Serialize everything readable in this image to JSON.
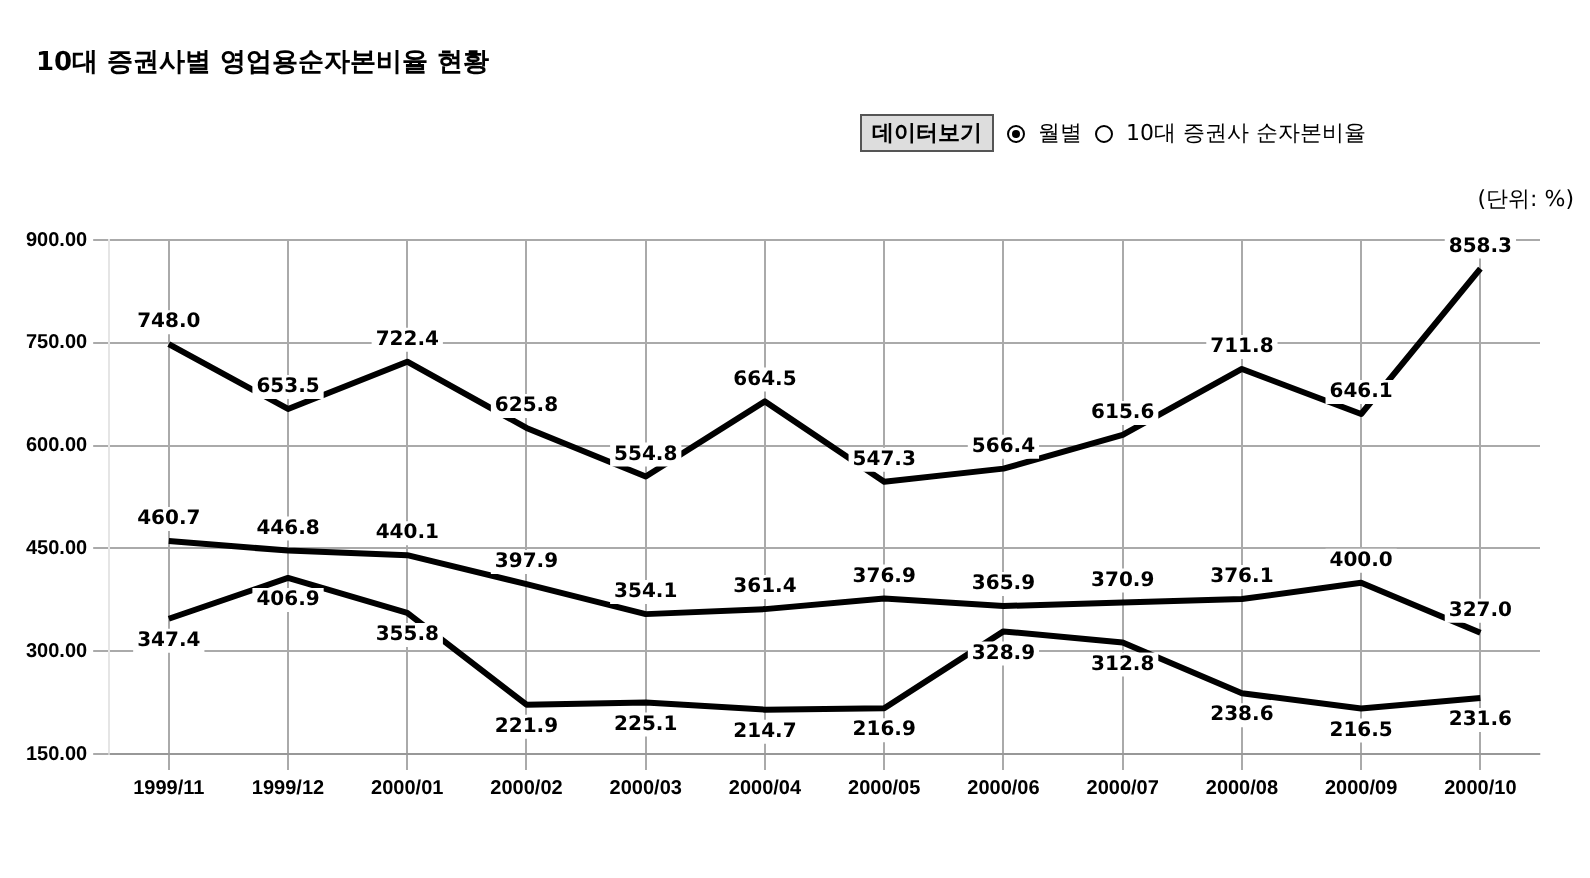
{
  "chart_data": {
    "type": "line",
    "title": "10대 증권사별 영업용순자본비율 현황",
    "annotations": [
      "데이터보기",
      "월별",
      "10대 증권사 순자본비율",
      "(단위: %)"
    ],
    "categories": [
      "1999/11",
      "1999/12",
      "2000/01",
      "2000/02",
      "2000/03",
      "2000/04",
      "2000/05",
      "2000/06",
      "2000/07",
      "2000/08",
      "2000/09",
      "2000/10"
    ],
    "series": [
      {
        "color": "#000000",
        "values": [
          748.0,
          653.5,
          722.4,
          625.8,
          554.8,
          664.5,
          547.3,
          566.4,
          615.6,
          711.8,
          646.1,
          858.3
        ],
        "value_labels": [
          "748.0",
          "653.5",
          "722.4",
          "625.8",
          "554.8",
          "664.5",
          "547.3",
          "566.4",
          "615.6",
          "711.8",
          "646.1",
          "858.3"
        ]
      },
      {
        "color": "#000000",
        "values": [
          460.7,
          446.8,
          440.1,
          397.9,
          354.1,
          361.4,
          376.9,
          365.9,
          370.9,
          376.1,
          400.0,
          327.0
        ],
        "value_labels": [
          "460.7",
          "446.8",
          "440.1",
          "397.9",
          "354.1",
          "361.4",
          "376.9",
          "365.9",
          "370.9",
          "376.1",
          "400.0",
          "327.0"
        ]
      },
      {
        "color": "#000000",
        "values": [
          347.4,
          406.9,
          355.8,
          221.9,
          225.1,
          214.7,
          216.9,
          328.9,
          312.8,
          238.6,
          216.5,
          231.6
        ],
        "value_labels": [
          "347.4",
          "406.9",
          "355.8",
          "221.9",
          "225.1",
          "214.7",
          "216.9",
          "328.9",
          "312.8",
          "238.6",
          "216.5",
          "231.6"
        ]
      }
    ],
    "ylim": [
      150,
      900
    ],
    "yticks": [
      {
        "value": 150,
        "label": "150.00"
      },
      {
        "value": 300,
        "label": "300.00"
      },
      {
        "value": 450,
        "label": "450.00"
      },
      {
        "value": 600,
        "label": "600.00"
      },
      {
        "value": 750,
        "label": "750.00"
      },
      {
        "value": 900,
        "label": "900.00"
      }
    ],
    "grid": true,
    "legend": false,
    "marker": "none",
    "line_style": "solid"
  }
}
